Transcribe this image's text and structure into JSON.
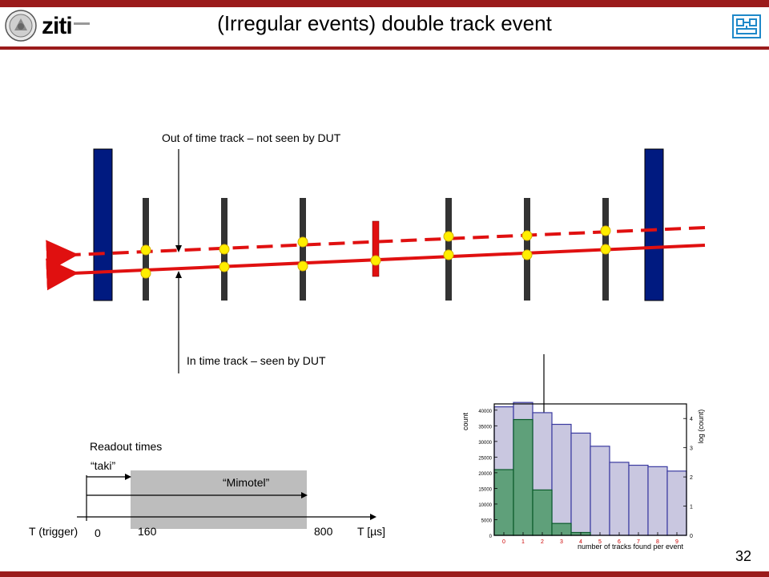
{
  "slide": {
    "title": "(Irregular events) double track event",
    "page_number": "32",
    "logo_text": "ziti"
  },
  "diagram": {
    "label_out_of_time": "Out of time track – not seen by DUT",
    "label_in_time": "In time track – seen by DUT"
  },
  "timing": {
    "readout_label": "Readout times",
    "taki_label": "“taki”",
    "mimotel_label": "“Mimotel”",
    "trigger_label": "T (trigger)",
    "tick_0": "0",
    "tick_160": "160",
    "tick_800": "800",
    "axis_label": "T [µs]"
  },
  "histogram": {
    "ylabel_left": "count",
    "ylabel_right": "log (count)",
    "xlabel": "number of tracks found per event",
    "left_ticks": [
      "40000",
      "35000",
      "30000",
      "25000",
      "20000",
      "15000",
      "10000",
      "5000",
      "0"
    ],
    "right_ticks": [
      "4",
      "3",
      "2",
      "1",
      "0"
    ],
    "x_ticks": [
      "0",
      "1",
      "2",
      "3",
      "4",
      "5",
      "6",
      "7",
      "8",
      "9"
    ]
  },
  "chart_data": {
    "type": "bar",
    "xlabel": "number of tracks found per event",
    "ylabel": "count",
    "y2label": "log (count)",
    "categories": [
      "0",
      "1",
      "2",
      "3",
      "4",
      "5",
      "6",
      "7",
      "8",
      "9"
    ],
    "ylim": [
      0,
      42000
    ],
    "y2lim": [
      0,
      4.5
    ],
    "series": [
      {
        "axis": "left",
        "color": "#5fa07a",
        "values": [
          21000,
          37000,
          14500,
          3800,
          900,
          0,
          0,
          0,
          0,
          0
        ]
      },
      {
        "axis": "right",
        "color": "#c9c7e0",
        "values": [
          4.4,
          4.55,
          4.2,
          3.8,
          3.5,
          3.05,
          2.5,
          2.4,
          2.35,
          2.2
        ]
      }
    ]
  },
  "colors": {
    "accent": "#9b1b1b",
    "track": "#e01010",
    "scint": "#001a80",
    "plane": "#333333",
    "dut": "#e01010",
    "hit": "#ffee00"
  }
}
